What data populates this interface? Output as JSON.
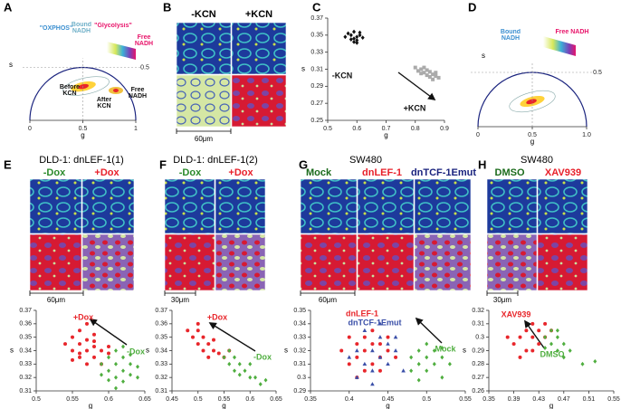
{
  "figure": {
    "panels": [
      {
        "letter": "A"
      },
      {
        "letter": "B",
        "labels": [
          "-KCN",
          "+KCN"
        ],
        "scale": "60μm"
      },
      {
        "letter": "C"
      },
      {
        "letter": "D"
      },
      {
        "letter": "E",
        "title": "DLD-1: dnLEF-1(1)",
        "labels": [
          "-Dox",
          "+Dox"
        ],
        "scale": "60μm"
      },
      {
        "letter": "F",
        "title": "DLD-1: dnLEF-1(2)",
        "labels": [
          "-Dox",
          "+Dox"
        ],
        "scale": "30μm"
      },
      {
        "letter": "G",
        "title": "SW480",
        "labels": [
          "Mock",
          "dnLEF-1",
          "dnTCF-1Emut"
        ],
        "scale": "60μm"
      },
      {
        "letter": "H",
        "title": "SW480",
        "labels": [
          "DMSO",
          "XAV939"
        ],
        "scale": "30μm"
      }
    ]
  },
  "chart_data": [
    {
      "type": "phasor",
      "x_label": "g",
      "y_label": "s",
      "xlim": [
        0,
        1
      ],
      "ylim": [
        0,
        0.5
      ],
      "xticks": [
        0,
        0.5,
        1
      ],
      "yticks": [
        0.5
      ],
      "annotations": [
        "\"OXPHOS\"",
        "Bound NADH",
        "\"Glycolysis\"",
        "Free NADH",
        "Before KCN",
        "After KCN",
        "Free NADH"
      ]
    },
    {
      "type": "scatter",
      "x_label": "g",
      "y_label": "s",
      "xlim": [
        0.5,
        0.9
      ],
      "ylim": [
        0.25,
        0.37
      ],
      "xticks": [
        0.5,
        0.6,
        0.7,
        0.8,
        0.9
      ],
      "yticks": [
        0.25,
        0.27,
        0.29,
        0.31,
        0.33,
        0.35,
        0.37
      ],
      "series": [
        {
          "name": "-KCN",
          "color": "#111111",
          "marker": "diamond",
          "x": [
            0.56,
            0.57,
            0.58,
            0.58,
            0.59,
            0.59,
            0.6,
            0.6,
            0.61,
            0.61,
            0.62,
            0.6,
            0.59
          ],
          "values": [
            0.348,
            0.352,
            0.345,
            0.35,
            0.342,
            0.354,
            0.348,
            0.344,
            0.35,
            0.353,
            0.347,
            0.341,
            0.346
          ]
        },
        {
          "name": "+KCN",
          "color": "#aaaaaa",
          "marker": "square",
          "x": [
            0.8,
            0.81,
            0.82,
            0.82,
            0.83,
            0.84,
            0.84,
            0.85,
            0.85,
            0.86,
            0.86,
            0.87,
            0.87,
            0.88,
            0.83
          ],
          "values": [
            0.312,
            0.308,
            0.31,
            0.305,
            0.306,
            0.303,
            0.309,
            0.301,
            0.307,
            0.304,
            0.298,
            0.302,
            0.306,
            0.3,
            0.312
          ]
        }
      ]
    },
    {
      "type": "phasor",
      "x_label": "g",
      "y_label": "s",
      "xlim": [
        0,
        1
      ],
      "ylim": [
        0,
        0.5
      ],
      "xticks": [
        0,
        0.5,
        {
          "value": 1,
          "label": "1.0"
        }
      ],
      "yticks": [
        0.5
      ],
      "annotations": [
        "Bound NADH",
        "Free NADH"
      ]
    },
    {
      "type": "scatter",
      "x_label": "g",
      "y_label": "s",
      "xlim": [
        0.5,
        0.65
      ],
      "ylim": [
        0.31,
        0.37
      ],
      "xticks": [
        0.5,
        0.55,
        0.6,
        0.65
      ],
      "yticks": [
        0.31,
        0.32,
        0.33,
        0.34,
        0.35,
        0.36,
        0.37
      ],
      "series": [
        {
          "name": "+Dox",
          "color": "#e8262b",
          "marker": "circle",
          "x": [
            0.54,
            0.55,
            0.55,
            0.56,
            0.56,
            0.56,
            0.57,
            0.57,
            0.57,
            0.58,
            0.58,
            0.58,
            0.59,
            0.59,
            0.6,
            0.57,
            0.55,
            0.58,
            0.56,
            0.6
          ],
          "values": [
            0.345,
            0.34,
            0.35,
            0.335,
            0.345,
            0.355,
            0.34,
            0.348,
            0.33,
            0.343,
            0.352,
            0.335,
            0.34,
            0.33,
            0.338,
            0.36,
            0.333,
            0.347,
            0.338,
            0.343
          ]
        },
        {
          "name": "-Dox",
          "color": "#4fae3f",
          "marker": "diamond",
          "x": [
            0.59,
            0.6,
            0.6,
            0.61,
            0.61,
            0.61,
            0.62,
            0.62,
            0.62,
            0.63,
            0.63,
            0.64,
            0.6,
            0.62,
            0.61,
            0.63,
            0.64,
            0.59
          ],
          "values": [
            0.33,
            0.335,
            0.325,
            0.34,
            0.33,
            0.32,
            0.335,
            0.325,
            0.317,
            0.33,
            0.322,
            0.328,
            0.318,
            0.343,
            0.312,
            0.337,
            0.32,
            0.322
          ]
        }
      ]
    },
    {
      "type": "scatter",
      "x_label": "g",
      "y_label": "s",
      "xlim": [
        0.45,
        0.65
      ],
      "ylim": [
        0.31,
        0.37
      ],
      "xticks": [
        0.45,
        0.5,
        0.55,
        0.6,
        0.65
      ],
      "yticks": [
        0.31,
        0.32,
        0.33,
        0.34,
        0.35,
        0.36,
        0.37
      ],
      "series": [
        {
          "name": "+Dox",
          "color": "#e8262b",
          "marker": "circle",
          "x": [
            0.48,
            0.49,
            0.5,
            0.5,
            0.51,
            0.51,
            0.52,
            0.52,
            0.53,
            0.54,
            0.55,
            0.56,
            0.5,
            0.53
          ],
          "values": [
            0.355,
            0.35,
            0.355,
            0.345,
            0.35,
            0.34,
            0.345,
            0.335,
            0.34,
            0.338,
            0.335,
            0.34,
            0.36,
            0.348
          ]
        },
        {
          "name": "-Dox",
          "color": "#4fae3f",
          "marker": "diamond",
          "x": [
            0.55,
            0.56,
            0.57,
            0.57,
            0.58,
            0.59,
            0.6,
            0.6,
            0.61,
            0.62,
            0.58,
            0.56,
            0.63
          ],
          "values": [
            0.335,
            0.33,
            0.335,
            0.325,
            0.33,
            0.325,
            0.32,
            0.33,
            0.32,
            0.315,
            0.322,
            0.34,
            0.318
          ]
        }
      ]
    },
    {
      "type": "scatter",
      "x_label": "g",
      "y_label": "s",
      "xlim": [
        0.35,
        0.55
      ],
      "ylim": [
        0.29,
        0.35
      ],
      "xticks": [
        0.35,
        0.4,
        0.45,
        0.5,
        0.55
      ],
      "yticks": [
        0.29,
        0.3,
        0.31,
        0.32,
        0.33,
        0.34,
        0.35
      ],
      "series": [
        {
          "name": "dnLEF-1",
          "color": "#e8262b",
          "marker": "circle",
          "x": [
            0.4,
            0.41,
            0.41,
            0.42,
            0.42,
            0.43,
            0.43,
            0.44,
            0.44,
            0.45,
            0.4,
            0.42,
            0.43,
            0.45,
            0.41,
            0.44,
            0.39,
            0.46
          ],
          "values": [
            0.33,
            0.325,
            0.315,
            0.33,
            0.32,
            0.335,
            0.31,
            0.325,
            0.315,
            0.32,
            0.31,
            0.305,
            0.325,
            0.33,
            0.3,
            0.305,
            0.32,
            0.315
          ]
        },
        {
          "name": "dnTCF-1Emut",
          "color": "#3a4fa8",
          "marker": "triangle",
          "x": [
            0.41,
            0.42,
            0.42,
            0.43,
            0.43,
            0.44,
            0.44,
            0.45,
            0.45,
            0.46,
            0.4,
            0.47,
            0.43,
            0.41,
            0.44,
            0.46
          ],
          "values": [
            0.32,
            0.335,
            0.31,
            0.32,
            0.305,
            0.33,
            0.315,
            0.31,
            0.325,
            0.32,
            0.315,
            0.305,
            0.295,
            0.3,
            0.34,
            0.33
          ]
        },
        {
          "name": "Mock",
          "color": "#4fae3f",
          "marker": "diamond",
          "x": [
            0.48,
            0.49,
            0.49,
            0.5,
            0.5,
            0.51,
            0.51,
            0.52,
            0.52,
            0.53,
            0.5,
            0.48,
            0.52,
            0.49
          ],
          "values": [
            0.315,
            0.32,
            0.31,
            0.325,
            0.305,
            0.32,
            0.31,
            0.315,
            0.3,
            0.31,
            0.315,
            0.305,
            0.322,
            0.298
          ]
        }
      ]
    },
    {
      "type": "scatter",
      "x_label": "g",
      "y_label": "s",
      "xlim": [
        0.35,
        0.55
      ],
      "ylim": [
        0.26,
        0.32
      ],
      "xticks": [
        0.35,
        0.39,
        0.43,
        0.47,
        0.51,
        0.55
      ],
      "yticks": [
        0.26,
        0.27,
        0.28,
        0.29,
        0.3,
        0.31,
        0.32
      ],
      "series": [
        {
          "name": "XAV939",
          "color": "#e8262b",
          "marker": "circle",
          "x": [
            0.39,
            0.4,
            0.41,
            0.41,
            0.42,
            0.42,
            0.43,
            0.43,
            0.44,
            0.44,
            0.45,
            0.4,
            0.42,
            0.38
          ],
          "values": [
            0.295,
            0.3,
            0.305,
            0.29,
            0.3,
            0.31,
            0.305,
            0.295,
            0.3,
            0.31,
            0.305,
            0.285,
            0.29,
            0.3
          ]
        },
        {
          "name": "DMSO",
          "color": "#4fae3f",
          "marker": "diamond",
          "x": [
            0.44,
            0.45,
            0.45,
            0.46,
            0.46,
            0.47,
            0.47,
            0.48,
            0.5,
            0.52,
            0.46,
            0.44
          ],
          "values": [
            0.3,
            0.305,
            0.295,
            0.3,
            0.29,
            0.295,
            0.285,
            0.29,
            0.28,
            0.282,
            0.305,
            0.292
          ]
        }
      ]
    }
  ]
}
